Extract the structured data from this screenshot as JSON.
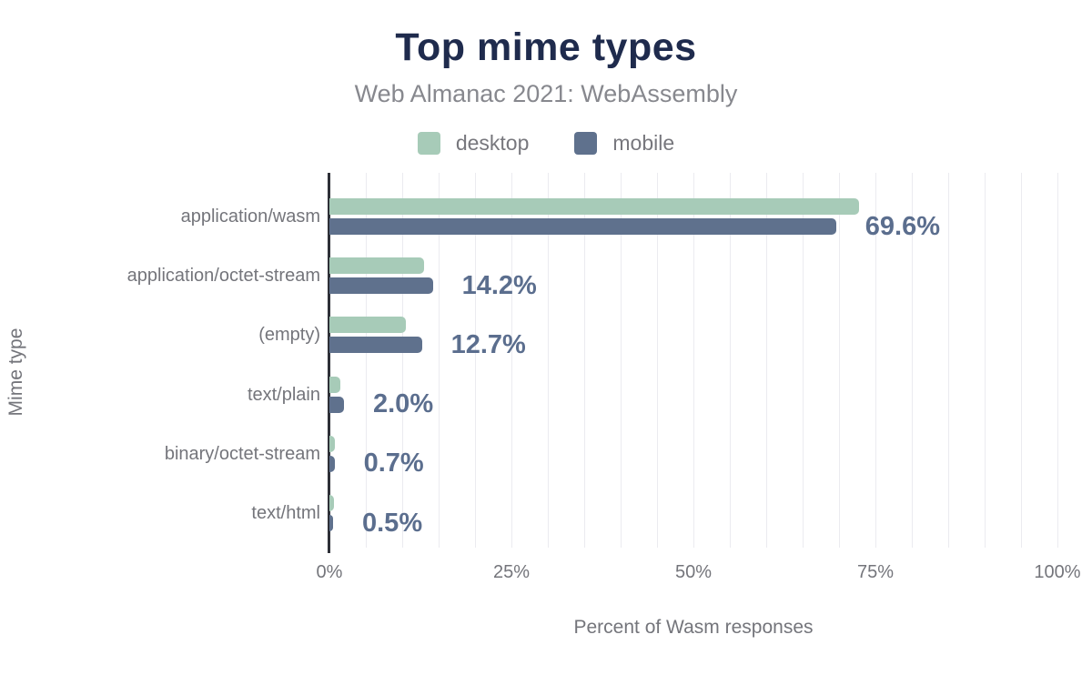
{
  "header": {
    "title": "Top mime types",
    "subtitle": "Web Almanac 2021: WebAssembly"
  },
  "legend": [
    {
      "label": "desktop",
      "color": "#a7cbb8"
    },
    {
      "label": "mobile",
      "color": "#5f718d"
    }
  ],
  "chart_data": {
    "type": "bar",
    "orientation": "horizontal",
    "title": "Top mime types",
    "subtitle": "Web Almanac 2021: WebAssembly",
    "categories": [
      "application/wasm",
      "application/octet-stream",
      "(empty)",
      "text/plain",
      "binary/octet-stream",
      "text/html"
    ],
    "series": [
      {
        "name": "desktop",
        "color": "#a7cbb8",
        "values": [
          72.8,
          13.0,
          10.5,
          1.5,
          0.7,
          0.6
        ]
      },
      {
        "name": "mobile",
        "color": "#5f718d",
        "values": [
          69.6,
          14.2,
          12.7,
          2.0,
          0.7,
          0.5
        ]
      }
    ],
    "value_labels": [
      "69.6%",
      "14.2%",
      "12.7%",
      "2.0%",
      "0.7%",
      "0.5%"
    ],
    "xlabel": "Percent of Wasm responses",
    "ylabel": "Mime type",
    "xlim": [
      0,
      100
    ],
    "x_ticks": [
      {
        "value": 0,
        "label": "0%"
      },
      {
        "value": 25,
        "label": "25%"
      },
      {
        "value": 50,
        "label": "50%"
      },
      {
        "value": 75,
        "label": "75%"
      },
      {
        "value": 100,
        "label": "100%"
      }
    ],
    "grid_step": 5,
    "grid": true,
    "legend_position": "top",
    "colors": {
      "title": "#1f2b4d",
      "subtitle": "#87888e",
      "value_label": "#5b6e8e",
      "axis_text": "#74757b",
      "gridline": "#ebebf0",
      "axis_line": "#2e3037"
    }
  }
}
